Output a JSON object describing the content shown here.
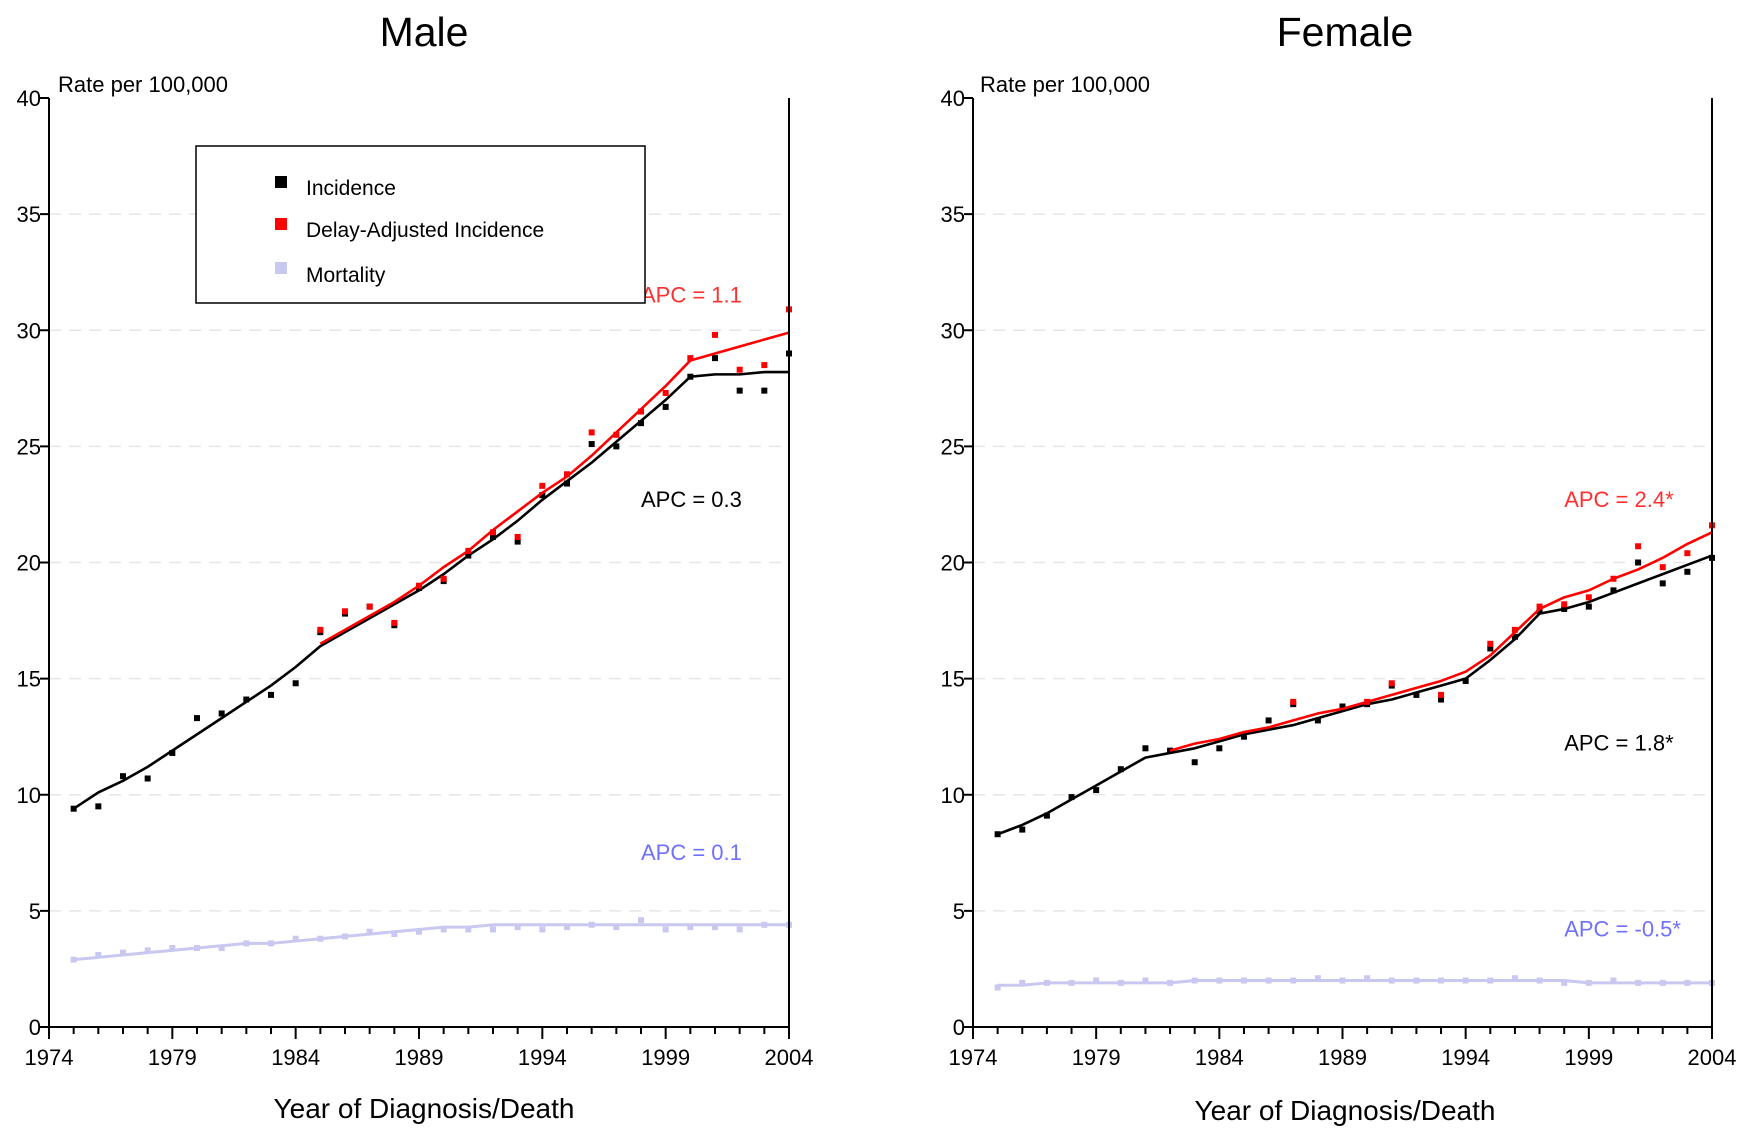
{
  "chart_data": [
    {
      "type": "line",
      "title": "Male",
      "xlabel": "Year of Diagnosis/Death",
      "ylabel": "Rate per 100,000",
      "xlim": [
        1974,
        2004
      ],
      "ylim": [
        0,
        40
      ],
      "xticks": [
        1974,
        1979,
        1984,
        1989,
        1994,
        1999,
        2004
      ],
      "yticks": [
        0,
        5,
        10,
        15,
        20,
        25,
        30,
        35,
        40
      ],
      "grid": true,
      "legend_position": "top-left",
      "legend": [
        {
          "label": "Incidence",
          "color": "#000000"
        },
        {
          "label": "Delay-Adjusted Incidence",
          "color": "#ff0000"
        },
        {
          "label": "Mortality",
          "color": "#c8c8f0"
        }
      ],
      "years": [
        1975,
        1976,
        1977,
        1978,
        1979,
        1980,
        1981,
        1982,
        1983,
        1984,
        1985,
        1986,
        1987,
        1988,
        1989,
        1990,
        1991,
        1992,
        1993,
        1994,
        1995,
        1996,
        1997,
        1998,
        1999,
        2000,
        2001,
        2002,
        2003,
        2004
      ],
      "series": [
        {
          "name": "Incidence",
          "color": "#000000",
          "observed": [
            9.4,
            9.5,
            10.8,
            10.7,
            11.8,
            13.3,
            13.5,
            14.1,
            14.3,
            14.8,
            17.0,
            17.8,
            18.1,
            17.3,
            18.9,
            19.2,
            20.3,
            21.1,
            20.9,
            22.9,
            23.4,
            25.1,
            25.0,
            26.0,
            26.7,
            28.0,
            28.8,
            27.4,
            27.4,
            29.0
          ],
          "fit": [
            9.4,
            10.1,
            10.6,
            11.2,
            11.9,
            12.6,
            13.3,
            14.0,
            14.7,
            15.5,
            16.4,
            17.0,
            17.6,
            18.2,
            18.8,
            19.5,
            20.3,
            21.0,
            21.8,
            22.7,
            23.5,
            24.3,
            25.2,
            26.1,
            27.0,
            28.0,
            28.1,
            28.1,
            28.2,
            28.2
          ]
        },
        {
          "name": "Delay-Adjusted Incidence",
          "color": "#ff0000",
          "observed": [
            null,
            null,
            null,
            null,
            null,
            null,
            null,
            null,
            null,
            null,
            17.1,
            17.9,
            18.1,
            17.4,
            19.0,
            19.3,
            20.5,
            21.3,
            21.1,
            23.3,
            23.8,
            25.6,
            25.5,
            26.5,
            27.3,
            28.8,
            29.8,
            28.3,
            28.5,
            30.9
          ],
          "fit": [
            null,
            null,
            null,
            null,
            null,
            null,
            null,
            null,
            null,
            null,
            16.5,
            17.1,
            17.7,
            18.3,
            19.0,
            19.8,
            20.5,
            21.4,
            22.2,
            23.0,
            23.7,
            24.6,
            25.6,
            26.6,
            27.6,
            28.7,
            29.0,
            29.3,
            29.6,
            29.9
          ]
        },
        {
          "name": "Mortality",
          "color": "#c8c8f0",
          "observed": [
            2.9,
            3.1,
            3.2,
            3.3,
            3.4,
            3.4,
            3.4,
            3.6,
            3.6,
            3.8,
            3.8,
            3.9,
            4.1,
            4.0,
            4.1,
            4.2,
            4.2,
            4.2,
            4.3,
            4.2,
            4.3,
            4.4,
            4.3,
            4.6,
            4.2,
            4.3,
            4.3,
            4.2,
            4.4,
            4.4
          ],
          "fit": [
            2.9,
            3.0,
            3.1,
            3.2,
            3.3,
            3.4,
            3.5,
            3.6,
            3.6,
            3.7,
            3.8,
            3.9,
            4.0,
            4.1,
            4.2,
            4.3,
            4.3,
            4.4,
            4.4,
            4.4,
            4.4,
            4.4,
            4.4,
            4.4,
            4.4,
            4.4,
            4.4,
            4.4,
            4.4,
            4.4
          ]
        }
      ],
      "annotations": [
        {
          "text": "APC = 1.1",
          "color": "#ff3030",
          "anchor_year": 1998,
          "anchor_value": 31.2
        },
        {
          "text": "APC =  0.3",
          "color": "#000000",
          "anchor_year": 1998,
          "anchor_value": 22.4
        },
        {
          "text": "APC =  0.1",
          "color": "#7070ff",
          "anchor_year": 1998,
          "anchor_value": 7.2
        }
      ]
    },
    {
      "type": "line",
      "title": "Female",
      "xlabel": "Year of Diagnosis/Death",
      "ylabel": "Rate per 100,000",
      "xlim": [
        1974,
        2004
      ],
      "ylim": [
        0,
        40
      ],
      "xticks": [
        1974,
        1979,
        1984,
        1989,
        1994,
        1999,
        2004
      ],
      "yticks": [
        0,
        5,
        10,
        15,
        20,
        25,
        30,
        35,
        40
      ],
      "grid": true,
      "years": [
        1975,
        1976,
        1977,
        1978,
        1979,
        1980,
        1981,
        1982,
        1983,
        1984,
        1985,
        1986,
        1987,
        1988,
        1989,
        1990,
        1991,
        1992,
        1993,
        1994,
        1995,
        1996,
        1997,
        1998,
        1999,
        2000,
        2001,
        2002,
        2003,
        2004
      ],
      "series": [
        {
          "name": "Incidence",
          "color": "#000000",
          "observed": [
            8.3,
            8.5,
            9.1,
            9.9,
            10.2,
            11.1,
            12.0,
            11.9,
            11.4,
            12.0,
            12.5,
            13.2,
            13.9,
            13.2,
            13.8,
            13.9,
            14.7,
            14.3,
            14.1,
            14.9,
            16.3,
            16.8,
            17.9,
            18.0,
            18.1,
            18.8,
            20.0,
            19.1,
            19.6,
            20.2
          ],
          "fit": [
            8.3,
            8.7,
            9.2,
            9.8,
            10.4,
            11.0,
            11.6,
            11.8,
            12.0,
            12.3,
            12.6,
            12.8,
            13.0,
            13.3,
            13.6,
            13.9,
            14.1,
            14.4,
            14.7,
            15.0,
            15.8,
            16.7,
            17.8,
            18.0,
            18.3,
            18.7,
            19.1,
            19.5,
            19.9,
            20.3
          ]
        },
        {
          "name": "Delay-Adjusted Incidence",
          "color": "#ff0000",
          "observed": [
            null,
            null,
            null,
            null,
            null,
            null,
            null,
            null,
            null,
            null,
            null,
            null,
            14.0,
            null,
            null,
            14.0,
            14.8,
            null,
            14.3,
            null,
            16.5,
            17.1,
            18.1,
            18.2,
            18.5,
            19.3,
            20.7,
            19.8,
            20.4,
            21.6
          ],
          "fit": [
            null,
            null,
            null,
            null,
            null,
            null,
            null,
            11.9,
            12.2,
            12.4,
            12.7,
            12.9,
            13.2,
            13.5,
            13.7,
            14.0,
            14.3,
            14.6,
            14.9,
            15.3,
            16.0,
            17.0,
            18.0,
            18.5,
            18.8,
            19.3,
            19.7,
            20.2,
            20.8,
            21.3
          ]
        },
        {
          "name": "Mortality",
          "color": "#c8c8f0",
          "observed": [
            1.7,
            1.9,
            1.9,
            1.9,
            2.0,
            1.9,
            2.0,
            1.9,
            2.0,
            2.0,
            2.0,
            2.0,
            2.0,
            2.1,
            2.0,
            2.1,
            2.0,
            2.0,
            2.0,
            2.0,
            2.0,
            2.1,
            2.0,
            1.9,
            1.9,
            2.0,
            1.9,
            1.9,
            1.9,
            1.9
          ],
          "fit": [
            1.8,
            1.8,
            1.9,
            1.9,
            1.9,
            1.9,
            1.9,
            1.9,
            2.0,
            2.0,
            2.0,
            2.0,
            2.0,
            2.0,
            2.0,
            2.0,
            2.0,
            2.0,
            2.0,
            2.0,
            2.0,
            2.0,
            2.0,
            2.0,
            1.9,
            1.9,
            1.9,
            1.9,
            1.9,
            1.9
          ]
        }
      ],
      "annotations": [
        {
          "text": "APC = 2.4*",
          "color": "#ff3030",
          "anchor_year": 1998,
          "anchor_value": 22.4
        },
        {
          "text": "APC = 1.8*",
          "color": "#000000",
          "anchor_year": 1998,
          "anchor_value": 11.9
        },
        {
          "text": "APC = -0.5*",
          "color": "#7070ff",
          "anchor_year": 1998,
          "anchor_value": 3.9
        }
      ]
    }
  ]
}
